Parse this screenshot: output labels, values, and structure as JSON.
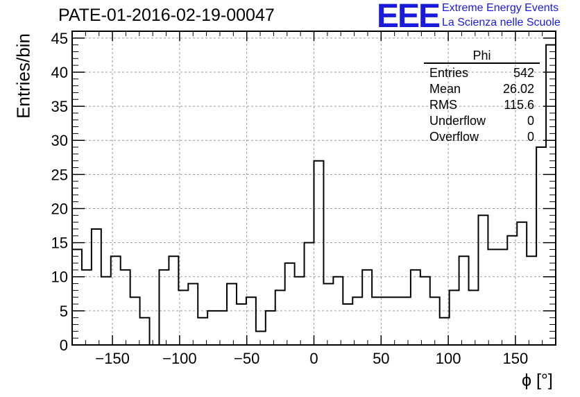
{
  "header": {
    "title": "PATE-01-2016-02-19-00047",
    "logo_mark": "EEE",
    "logo_line1": "Extreme Energy Events",
    "logo_line2": "La Scienza nelle Scuole"
  },
  "stats": {
    "name": "Phi",
    "rows": [
      {
        "label": "Entries",
        "value": "542"
      },
      {
        "label": "Mean",
        "value": "26.02"
      },
      {
        "label": "RMS",
        "value": "115.6"
      },
      {
        "label": "Underflow",
        "value": "0"
      },
      {
        "label": "Overflow",
        "value": "0"
      }
    ]
  },
  "colors": {
    "line": "#000000",
    "grid": "#9a9a9a",
    "logo": "#1a1adb"
  },
  "chart_data": {
    "type": "bar",
    "style": "step histogram",
    "title": "PATE-01-2016-02-19-00047",
    "xlabel": "ϕ [°]",
    "ylabel": "Entries/bin",
    "xlim": [
      -180,
      180
    ],
    "ylim": [
      0,
      46
    ],
    "grid": true,
    "bin_width": 7.2,
    "x_ticks": [
      -150,
      -100,
      -50,
      0,
      50,
      100,
      150
    ],
    "x_tick_labels": [
      "−150",
      "−100",
      "−50",
      "0",
      "50",
      "100",
      "150"
    ],
    "y_ticks": [
      0,
      5,
      10,
      15,
      20,
      25,
      30,
      35,
      40,
      45
    ],
    "y_tick_labels": [
      "0",
      "5",
      "10",
      "15",
      "20",
      "25",
      "30",
      "35",
      "40",
      "45"
    ],
    "values": [
      14,
      11,
      17,
      10,
      13,
      11,
      7,
      4,
      0,
      11,
      13,
      8,
      9,
      4,
      5,
      5,
      9,
      6,
      7,
      2,
      5,
      8,
      12,
      10,
      15,
      27,
      9,
      10,
      6,
      7,
      11,
      7,
      7,
      7,
      7,
      11,
      10,
      7,
      4,
      8,
      13,
      8,
      19,
      14,
      14,
      16,
      18,
      13,
      29,
      44
    ]
  }
}
